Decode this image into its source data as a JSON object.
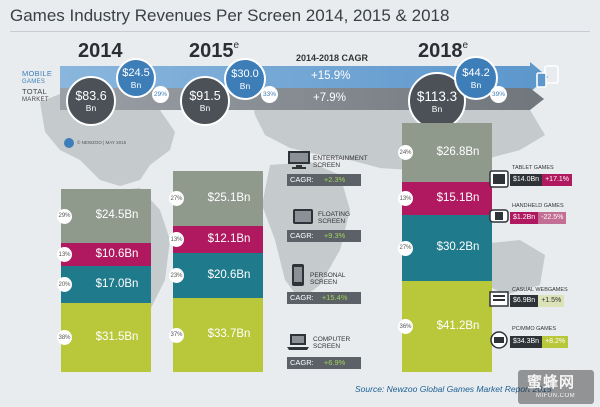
{
  "title": "Games Industry Revenues Per Screen 2014, 2015 & 2018",
  "headers": {
    "y2014": "2014",
    "y2015": "2015",
    "y2015_sup": "e",
    "y2018": "2018",
    "y2018_sup": "e",
    "cagr": "2014-2018 CAGR"
  },
  "bands": {
    "mobile_label_1": "MOBILE",
    "mobile_label_2": "GAMES",
    "total_label_1": "TOTAL",
    "total_label_2": "MARKET",
    "mobile_cagr": "+15.9%",
    "total_cagr": "+7.9%"
  },
  "bubbles": {
    "unit": "Bn",
    "y2014": {
      "mobile": "$24.5",
      "mobile_pct": "29%",
      "total": "$83.6"
    },
    "y2015": {
      "mobile": "$30.0",
      "mobile_pct": "33%",
      "total": "$91.5"
    },
    "y2018": {
      "mobile": "$44.2",
      "mobile_pct": "39%",
      "total": "$113.3"
    }
  },
  "credit": "© NEWZOO | MAY 2015",
  "chart_data": {
    "type": "bar",
    "stacked": true,
    "title": "Games Industry Revenues Per Screen 2014, 2015 & 2018",
    "categories": [
      "2014",
      "2015e",
      "2018e"
    ],
    "unit": "$ Bn",
    "series": [
      {
        "name": "Computer Screen",
        "color": "#b8c83a",
        "values": [
          31.5,
          33.7,
          41.2
        ],
        "labels": [
          "$31.5Bn",
          "$33.7Bn",
          "$41.2Bn"
        ],
        "shares": [
          "38%",
          "37%",
          "36%"
        ]
      },
      {
        "name": "Personal Screen",
        "color": "#1f7a8c",
        "values": [
          17.0,
          20.6,
          30.2
        ],
        "labels": [
          "$17.0Bn",
          "$20.6Bn",
          "$30.2Bn"
        ],
        "shares": [
          "20%",
          "23%",
          "27%"
        ]
      },
      {
        "name": "Floating Screen",
        "color": "#b0195f",
        "values": [
          10.6,
          12.1,
          15.1
        ],
        "labels": [
          "$10.6Bn",
          "$12.1Bn",
          "$15.1Bn"
        ],
        "shares": [
          "13%",
          "13%",
          "13%"
        ]
      },
      {
        "name": "Entertainment Screen",
        "color": "#8f9a8d",
        "values": [
          24.5,
          25.1,
          26.8
        ],
        "labels": [
          "$24.5Bn",
          "$25.1Bn",
          "$26.8Bn"
        ],
        "shares": [
          "29%",
          "27%",
          "24%"
        ]
      }
    ],
    "totals": [
      83.6,
      91.5,
      113.3
    ],
    "mobile_games": [
      24.5,
      30.0,
      44.2
    ],
    "cagr_total": "+7.9%",
    "cagr_mobile": "+15.9%"
  },
  "screens": {
    "entertainment": {
      "line1": "ENTERTAINMENT",
      "line2": "SCREEN",
      "cagr": "CAGR:",
      "value": "+2.3%"
    },
    "floating": {
      "line1": "FLOATING",
      "line2": "SCREEN",
      "cagr": "CAGR:",
      "value": "+9.3%"
    },
    "personal": {
      "line1": "PERSONAL",
      "line2": "SCREEN",
      "cagr": "CAGR:",
      "value": "+15.4%"
    },
    "computer": {
      "line1": "COMPUTER",
      "line2": "SCREEN",
      "cagr": "CAGR:",
      "value": "+6.9%"
    }
  },
  "subsegments": {
    "tablet": {
      "title": "TABLET GAMES",
      "value": "$14.0Bn",
      "cagr": "+17.1%"
    },
    "handheld": {
      "title": "HANDHELD GAMES",
      "value": "$1.2Bn",
      "cagr": "-22.5%"
    },
    "casual": {
      "title": "CASUAL WEBGAMES",
      "value": "$6.9Bn",
      "cagr": "+1.5%"
    },
    "pcmmo": {
      "title": "PC/MMO GAMES",
      "value": "$34.3Bn",
      "cagr": "+8.2%"
    }
  },
  "source": "Source: Newzoo Global Games Market Report 2015",
  "watermark": {
    "cn": "蜜蜂网",
    "en": "MIFUN.COM"
  },
  "colors": {
    "computer": "#b8c83a",
    "personal": "#1f7a8c",
    "floating": "#b0195f",
    "entertainment": "#8f9a8d",
    "mobile_blue": "#3d7db8",
    "total_dark": "#4b5157"
  }
}
